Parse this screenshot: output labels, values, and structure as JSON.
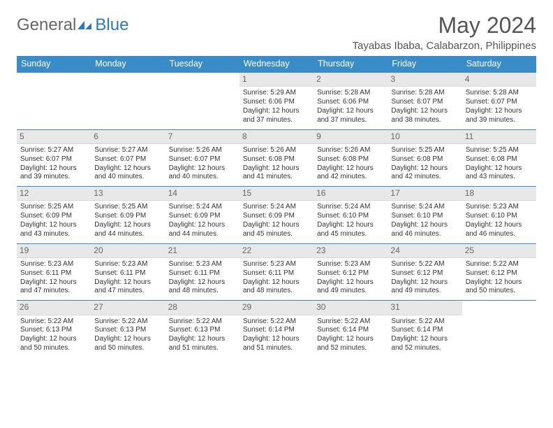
{
  "logo": {
    "word1": "General",
    "word2": "Blue"
  },
  "title": "May 2024",
  "subtitle": "Tayabas Ibaba, Calabarzon, Philippines",
  "colors": {
    "header_bg": "#3a8cc9",
    "header_text": "#ffffff",
    "daynum_bg": "#e8e8e8",
    "rule": "#3a8cc9",
    "logo_accent": "#2a7ab8"
  },
  "weekdays": [
    "Sunday",
    "Monday",
    "Tuesday",
    "Wednesday",
    "Thursday",
    "Friday",
    "Saturday"
  ],
  "weeks": [
    [
      null,
      null,
      null,
      {
        "n": "1",
        "sr": "5:29 AM",
        "ss": "6:06 PM",
        "dl": "12 hours and 37 minutes."
      },
      {
        "n": "2",
        "sr": "5:28 AM",
        "ss": "6:06 PM",
        "dl": "12 hours and 37 minutes."
      },
      {
        "n": "3",
        "sr": "5:28 AM",
        "ss": "6:07 PM",
        "dl": "12 hours and 38 minutes."
      },
      {
        "n": "4",
        "sr": "5:28 AM",
        "ss": "6:07 PM",
        "dl": "12 hours and 39 minutes."
      }
    ],
    [
      {
        "n": "5",
        "sr": "5:27 AM",
        "ss": "6:07 PM",
        "dl": "12 hours and 39 minutes."
      },
      {
        "n": "6",
        "sr": "5:27 AM",
        "ss": "6:07 PM",
        "dl": "12 hours and 40 minutes."
      },
      {
        "n": "7",
        "sr": "5:26 AM",
        "ss": "6:07 PM",
        "dl": "12 hours and 40 minutes."
      },
      {
        "n": "8",
        "sr": "5:26 AM",
        "ss": "6:08 PM",
        "dl": "12 hours and 41 minutes."
      },
      {
        "n": "9",
        "sr": "5:26 AM",
        "ss": "6:08 PM",
        "dl": "12 hours and 42 minutes."
      },
      {
        "n": "10",
        "sr": "5:25 AM",
        "ss": "6:08 PM",
        "dl": "12 hours and 42 minutes."
      },
      {
        "n": "11",
        "sr": "5:25 AM",
        "ss": "6:08 PM",
        "dl": "12 hours and 43 minutes."
      }
    ],
    [
      {
        "n": "12",
        "sr": "5:25 AM",
        "ss": "6:09 PM",
        "dl": "12 hours and 43 minutes."
      },
      {
        "n": "13",
        "sr": "5:25 AM",
        "ss": "6:09 PM",
        "dl": "12 hours and 44 minutes."
      },
      {
        "n": "14",
        "sr": "5:24 AM",
        "ss": "6:09 PM",
        "dl": "12 hours and 44 minutes."
      },
      {
        "n": "15",
        "sr": "5:24 AM",
        "ss": "6:09 PM",
        "dl": "12 hours and 45 minutes."
      },
      {
        "n": "16",
        "sr": "5:24 AM",
        "ss": "6:10 PM",
        "dl": "12 hours and 45 minutes."
      },
      {
        "n": "17",
        "sr": "5:24 AM",
        "ss": "6:10 PM",
        "dl": "12 hours and 46 minutes."
      },
      {
        "n": "18",
        "sr": "5:23 AM",
        "ss": "6:10 PM",
        "dl": "12 hours and 46 minutes."
      }
    ],
    [
      {
        "n": "19",
        "sr": "5:23 AM",
        "ss": "6:11 PM",
        "dl": "12 hours and 47 minutes."
      },
      {
        "n": "20",
        "sr": "5:23 AM",
        "ss": "6:11 PM",
        "dl": "12 hours and 47 minutes."
      },
      {
        "n": "21",
        "sr": "5:23 AM",
        "ss": "6:11 PM",
        "dl": "12 hours and 48 minutes."
      },
      {
        "n": "22",
        "sr": "5:23 AM",
        "ss": "6:11 PM",
        "dl": "12 hours and 48 minutes."
      },
      {
        "n": "23",
        "sr": "5:23 AM",
        "ss": "6:12 PM",
        "dl": "12 hours and 49 minutes."
      },
      {
        "n": "24",
        "sr": "5:22 AM",
        "ss": "6:12 PM",
        "dl": "12 hours and 49 minutes."
      },
      {
        "n": "25",
        "sr": "5:22 AM",
        "ss": "6:12 PM",
        "dl": "12 hours and 50 minutes."
      }
    ],
    [
      {
        "n": "26",
        "sr": "5:22 AM",
        "ss": "6:13 PM",
        "dl": "12 hours and 50 minutes."
      },
      {
        "n": "27",
        "sr": "5:22 AM",
        "ss": "6:13 PM",
        "dl": "12 hours and 50 minutes."
      },
      {
        "n": "28",
        "sr": "5:22 AM",
        "ss": "6:13 PM",
        "dl": "12 hours and 51 minutes."
      },
      {
        "n": "29",
        "sr": "5:22 AM",
        "ss": "6:14 PM",
        "dl": "12 hours and 51 minutes."
      },
      {
        "n": "30",
        "sr": "5:22 AM",
        "ss": "6:14 PM",
        "dl": "12 hours and 52 minutes."
      },
      {
        "n": "31",
        "sr": "5:22 AM",
        "ss": "6:14 PM",
        "dl": "12 hours and 52 minutes."
      },
      null
    ]
  ],
  "labels": {
    "sunrise": "Sunrise:",
    "sunset": "Sunset:",
    "daylight": "Daylight:"
  }
}
